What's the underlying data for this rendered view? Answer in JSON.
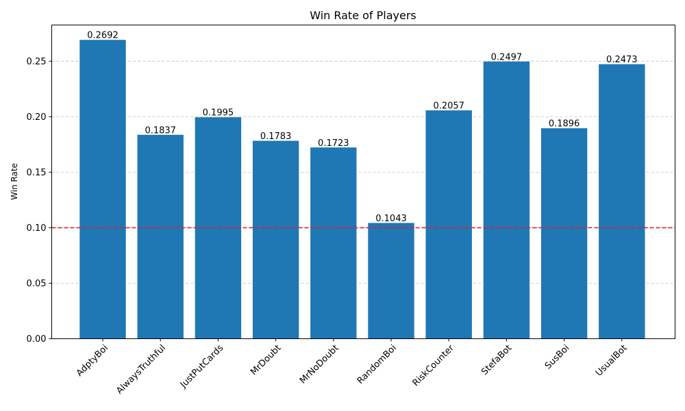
{
  "chart_data": {
    "type": "bar",
    "title": "Win Rate of Players",
    "xlabel": "",
    "ylabel": "Win Rate",
    "categories": [
      "AdptyBoi",
      "AlwaysTruthful",
      "JustPutCards",
      "MrDoubt",
      "MrNoDoubt",
      "RandomBoi",
      "RiskCounter",
      "StefaBot",
      "SusBoi",
      "UsualBot"
    ],
    "values": [
      0.2692,
      0.1837,
      0.1995,
      0.1783,
      0.1723,
      0.1043,
      0.2057,
      0.2497,
      0.1896,
      0.2473
    ],
    "value_labels": [
      "0.2692",
      "0.1837",
      "0.1995",
      "0.1783",
      "0.1723",
      "0.1043",
      "0.2057",
      "0.2497",
      "0.1896",
      "0.2473"
    ],
    "yticks": [
      0.0,
      0.05,
      0.1,
      0.15,
      0.2,
      0.25
    ],
    "ytick_labels": [
      "0.00",
      "0.05",
      "0.10",
      "0.15",
      "0.20",
      "0.25"
    ],
    "ylim": [
      0,
      0.2826
    ],
    "reference_line": {
      "y": 0.1,
      "color": "#d62728",
      "style": "dashed"
    },
    "bar_color": "#1f77b4",
    "grid": "y-axis, dashed",
    "legend": "none",
    "xtick_rotation_deg": 45
  }
}
